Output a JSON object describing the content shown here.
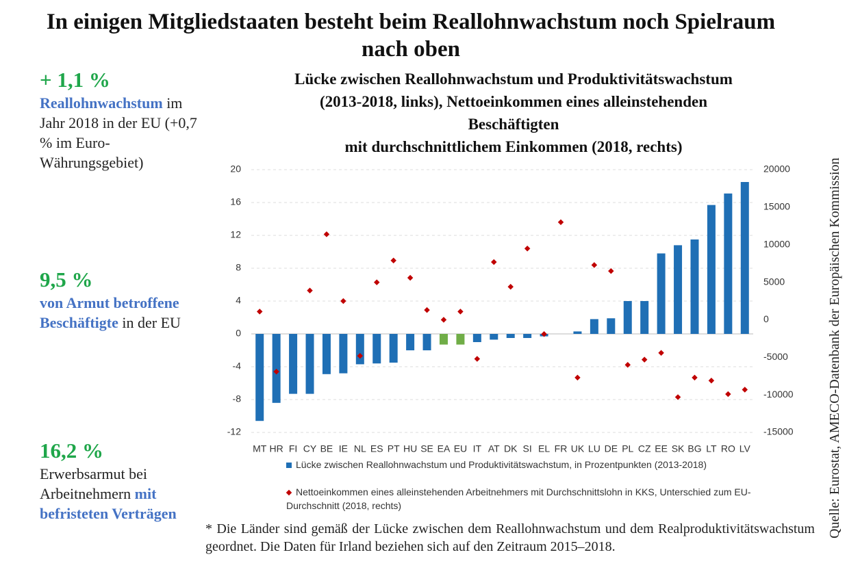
{
  "title": "In einigen Mitgliedstaaten besteht beim Reallohnwachstum noch Spielraum nach oben",
  "stats": [
    {
      "figure": "+ 1,1 %",
      "parts": [
        {
          "text": "Reallohnwachstum",
          "style": "highlight"
        },
        {
          "text": " im Jahr 2018 in der EU (+0,7 % im Euro-Währungsgebiet)",
          "style": "plain"
        }
      ]
    },
    {
      "figure": "9,5 %",
      "parts": [
        {
          "text": "von Armut betroffene Beschäftigte",
          "style": "highlight"
        },
        {
          "text": " in der EU",
          "style": "plain"
        }
      ]
    },
    {
      "figure": "16,2 %",
      "parts": [
        {
          "text": "Erwerbsarmut bei Arbeitnehmern ",
          "style": "plain"
        },
        {
          "text": "mit befristeten Verträgen",
          "style": "highlight"
        }
      ]
    }
  ],
  "footnote": "* Die Länder sind gemäß der Lücke zwischen dem Reallohnwachstum und dem Realproduktivitätswachstum geordnet. Die Daten für Irland beziehen sich auf den Zeitraum 2015–2018.",
  "source": "Quelle: Eurostat, AMECO-Datenbank der Europäischen Kommission",
  "chart_data": {
    "type": "bar",
    "title_lines": [
      "Lücke zwischen Reallohnwachstum und Produktivitätswachstum",
      "(2013-2018, links), Nettoeinkommen eines alleinstehenden",
      "Beschäftigten",
      "mit durchschnittlichem Einkommen (2018, rechts)"
    ],
    "categories": [
      "MT",
      "HR",
      "FI",
      "CY",
      "BE",
      "IE",
      "NL",
      "ES",
      "PT",
      "HU",
      "SE",
      "EA",
      "EU",
      "IT",
      "AT",
      "DK",
      "SI",
      "EL",
      "FR",
      "UK",
      "LU",
      "DE",
      "PL",
      "CZ",
      "EE",
      "SK",
      "BG",
      "LT",
      "RO",
      "LV"
    ],
    "series": [
      {
        "name": "Lücke zwischen Reallohnwachstum und Produktivitätswachstum, in Prozentpunkten (2013-2018)",
        "type": "bar",
        "color": "#1f6fb5",
        "colors": [
          "#1f6fb5",
          "#1f6fb5",
          "#1f6fb5",
          "#1f6fb5",
          "#1f6fb5",
          "#1f6fb5",
          "#1f6fb5",
          "#1f6fb5",
          "#1f6fb5",
          "#1f6fb5",
          "#1f6fb5",
          "#70ad47",
          "#70ad47",
          "#1f6fb5",
          "#1f6fb5",
          "#1f6fb5",
          "#1f6fb5",
          "#1f6fb5",
          "#1f6fb5",
          "#1f6fb5",
          "#1f6fb5",
          "#1f6fb5",
          "#1f6fb5",
          "#1f6fb5",
          "#1f6fb5",
          "#1f6fb5",
          "#1f6fb5",
          "#1f6fb5",
          "#1f6fb5",
          "#1f6fb5"
        ],
        "values": [
          -10.6,
          -8.4,
          -7.3,
          -7.3,
          -4.9,
          -4.8,
          -3.7,
          -3.6,
          -3.5,
          -2.0,
          -2.0,
          -1.3,
          -1.3,
          -1.0,
          -0.7,
          -0.5,
          -0.5,
          -0.3,
          0,
          0.3,
          1.8,
          1.9,
          4.0,
          4.0,
          9.8,
          10.8,
          11.5,
          15.7,
          17.1,
          18.5
        ]
      },
      {
        "name": "Nettoeinkommen eines alleinstehenden Arbeitnehmers mit Durchschnittslohn in KKS, Unterschied zum EU-Durchschnitt (2018, rechts)",
        "type": "scatter",
        "axis": "y2",
        "color": "#c00000",
        "values": [
          1100,
          -6900,
          null,
          3900,
          11400,
          2500,
          -4800,
          5000,
          7900,
          5600,
          1300,
          0,
          1100,
          -5200,
          7700,
          4400,
          9500,
          -1900,
          13000,
          -7700,
          7300,
          6500,
          -6000,
          -5300,
          -4400,
          -10300,
          -7700,
          -8100,
          -9900,
          -9300
        ]
      }
    ],
    "ylim": [
      -12,
      20
    ],
    "yticks": [
      -12,
      -8,
      -4,
      0,
      4,
      8,
      12,
      16,
      20
    ],
    "y2lim": [
      -15000,
      20000
    ],
    "y2ticks": [
      -15000,
      -10000,
      -5000,
      0,
      5000,
      10000,
      15000,
      20000
    ],
    "grid": true
  }
}
